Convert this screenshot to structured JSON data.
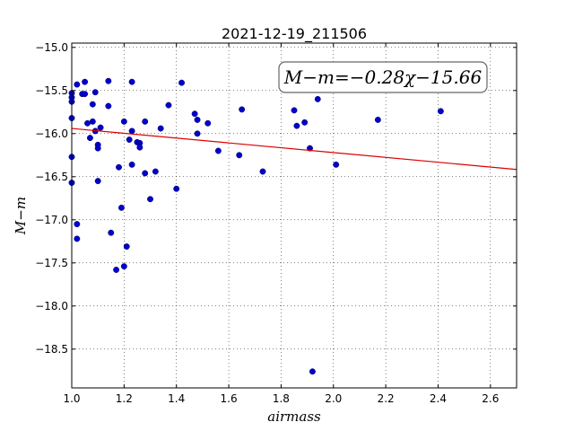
{
  "chart_data": {
    "type": "scatter",
    "title": "2021-12-19_211506",
    "xlabel": "airmass",
    "ylabel": "M−m",
    "xlim": [
      1.0,
      2.7
    ],
    "ylim": [
      -18.95,
      -14.95
    ],
    "y_inverted": true,
    "grid": true,
    "xticks": [
      "1.0",
      "1.2",
      "1.4",
      "1.6",
      "1.8",
      "2.0",
      "2.2",
      "2.4",
      "2.6"
    ],
    "xtick_values": [
      1.0,
      1.2,
      1.4,
      1.6,
      1.8,
      2.0,
      2.2,
      2.4,
      2.6
    ],
    "yticks": [
      "−15.0",
      "−15.5",
      "−16.0",
      "−16.5",
      "−17.0",
      "−17.5",
      "−18.0",
      "−18.5"
    ],
    "ytick_values": [
      -15.0,
      -15.5,
      -16.0,
      -16.5,
      -17.0,
      -17.5,
      -18.0,
      -18.5
    ],
    "annotation": "M−m=−0.28χ−15.66",
    "fit": {
      "slope": -0.28,
      "intercept": -15.66,
      "color": "#dd0000"
    },
    "point_color": "#0000cc",
    "points": [
      {
        "x": 1.0,
        "y": -15.53
      },
      {
        "x": 1.0,
        "y": -15.58
      },
      {
        "x": 1.0,
        "y": -15.63
      },
      {
        "x": 1.0,
        "y": -15.82
      },
      {
        "x": 1.0,
        "y": -16.27
      },
      {
        "x": 1.0,
        "y": -16.57
      },
      {
        "x": 1.02,
        "y": -15.43
      },
      {
        "x": 1.04,
        "y": -15.54
      },
      {
        "x": 1.05,
        "y": -15.4
      },
      {
        "x": 1.05,
        "y": -15.54
      },
      {
        "x": 1.06,
        "y": -15.88
      },
      {
        "x": 1.07,
        "y": -16.05
      },
      {
        "x": 1.08,
        "y": -15.66
      },
      {
        "x": 1.08,
        "y": -15.86
      },
      {
        "x": 1.09,
        "y": -15.52
      },
      {
        "x": 1.09,
        "y": -15.97
      },
      {
        "x": 1.1,
        "y": -16.13
      },
      {
        "x": 1.1,
        "y": -16.17
      },
      {
        "x": 1.1,
        "y": -16.55
      },
      {
        "x": 1.11,
        "y": -15.93
      },
      {
        "x": 1.14,
        "y": -15.39
      },
      {
        "x": 1.14,
        "y": -15.68
      },
      {
        "x": 1.15,
        "y": -17.15
      },
      {
        "x": 1.17,
        "y": -17.58
      },
      {
        "x": 1.18,
        "y": -16.39
      },
      {
        "x": 1.19,
        "y": -16.86
      },
      {
        "x": 1.2,
        "y": -15.86
      },
      {
        "x": 1.2,
        "y": -17.54
      },
      {
        "x": 1.21,
        "y": -17.31
      },
      {
        "x": 1.22,
        "y": -16.07
      },
      {
        "x": 1.23,
        "y": -15.4
      },
      {
        "x": 1.23,
        "y": -15.97
      },
      {
        "x": 1.23,
        "y": -16.36
      },
      {
        "x": 1.25,
        "y": -16.1
      },
      {
        "x": 1.26,
        "y": -16.11
      },
      {
        "x": 1.26,
        "y": -16.16
      },
      {
        "x": 1.28,
        "y": -15.86
      },
      {
        "x": 1.28,
        "y": -16.46
      },
      {
        "x": 1.3,
        "y": -16.76
      },
      {
        "x": 1.32,
        "y": -16.44
      },
      {
        "x": 1.34,
        "y": -15.94
      },
      {
        "x": 1.37,
        "y": -15.67
      },
      {
        "x": 1.4,
        "y": -16.64
      },
      {
        "x": 1.42,
        "y": -15.41
      },
      {
        "x": 1.47,
        "y": -15.77
      },
      {
        "x": 1.48,
        "y": -15.84
      },
      {
        "x": 1.48,
        "y": -16.0
      },
      {
        "x": 1.52,
        "y": -15.88
      },
      {
        "x": 1.56,
        "y": -16.2
      },
      {
        "x": 1.64,
        "y": -16.25
      },
      {
        "x": 1.65,
        "y": -15.72
      },
      {
        "x": 1.73,
        "y": -16.44
      },
      {
        "x": 1.85,
        "y": -15.73
      },
      {
        "x": 1.86,
        "y": -15.91
      },
      {
        "x": 1.89,
        "y": -15.87
      },
      {
        "x": 1.91,
        "y": -16.17
      },
      {
        "x": 1.92,
        "y": -18.76
      },
      {
        "x": 1.94,
        "y": -15.6
      },
      {
        "x": 2.01,
        "y": -16.36
      },
      {
        "x": 2.17,
        "y": -15.84
      },
      {
        "x": 2.41,
        "y": -15.74
      },
      {
        "x": 1.02,
        "y": -17.05
      },
      {
        "x": 1.02,
        "y": -17.22
      }
    ]
  }
}
